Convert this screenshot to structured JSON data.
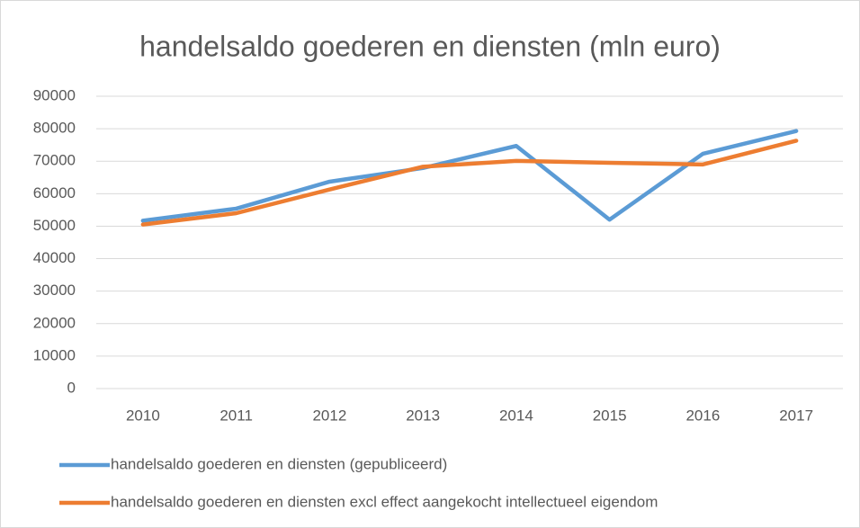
{
  "chart_data": {
    "type": "line",
    "title": "handelsaldo goederen en diensten (mln euro)",
    "categories": [
      "2010",
      "2011",
      "2012",
      "2013",
      "2014",
      "2015",
      "2016",
      "2017"
    ],
    "series": [
      {
        "name": "handelsaldo goederen en diensten (gepubliceerd)",
        "color": "#5b9bd5",
        "values": [
          51700,
          55400,
          63700,
          67900,
          74700,
          52000,
          72300,
          79300
        ]
      },
      {
        "name": "handelsaldo goederen en diensten excl effect aangekocht intellectueel eigendom",
        "color": "#ed7d31",
        "values": [
          50500,
          54000,
          61300,
          68300,
          70100,
          69500,
          69000,
          76300
        ]
      }
    ],
    "ylim": [
      0,
      90000
    ],
    "yticks": [
      0,
      10000,
      20000,
      30000,
      40000,
      50000,
      60000,
      70000,
      80000,
      90000
    ],
    "grid": true,
    "legend": "bottom"
  }
}
